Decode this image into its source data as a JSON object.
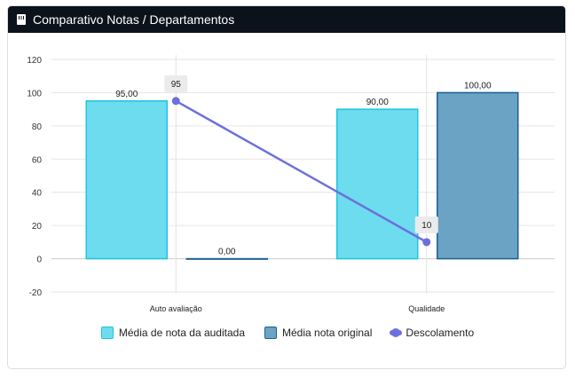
{
  "header": {
    "title": "Comparativo Notas / Departamentos",
    "icon": "building-icon"
  },
  "chart_data": {
    "type": "bar",
    "title": "Comparativo Notas / Departamentos",
    "categories": [
      "Auto avaliação",
      "Qualidade"
    ],
    "ylim": [
      -20,
      120
    ],
    "yticks": [
      -20,
      0,
      20,
      40,
      60,
      80,
      100,
      120
    ],
    "series": [
      {
        "name": "Média de nota da auditada",
        "type": "bar",
        "values": [
          95,
          90
        ],
        "labels": [
          "95,00",
          "90,00"
        ],
        "color": "#6ddcef",
        "border": "#1fc3e0"
      },
      {
        "name": "Média nota original",
        "type": "bar",
        "values": [
          0,
          100
        ],
        "labels": [
          "0,00",
          "100,00"
        ],
        "color": "#6aa3c4",
        "border": "#1a5f94"
      },
      {
        "name": "Descolamento",
        "type": "line",
        "values": [
          95,
          10
        ],
        "labels": [
          "95",
          "10"
        ],
        "color": "#6c6fdc"
      }
    ],
    "legend": "bottom",
    "grid": true
  }
}
